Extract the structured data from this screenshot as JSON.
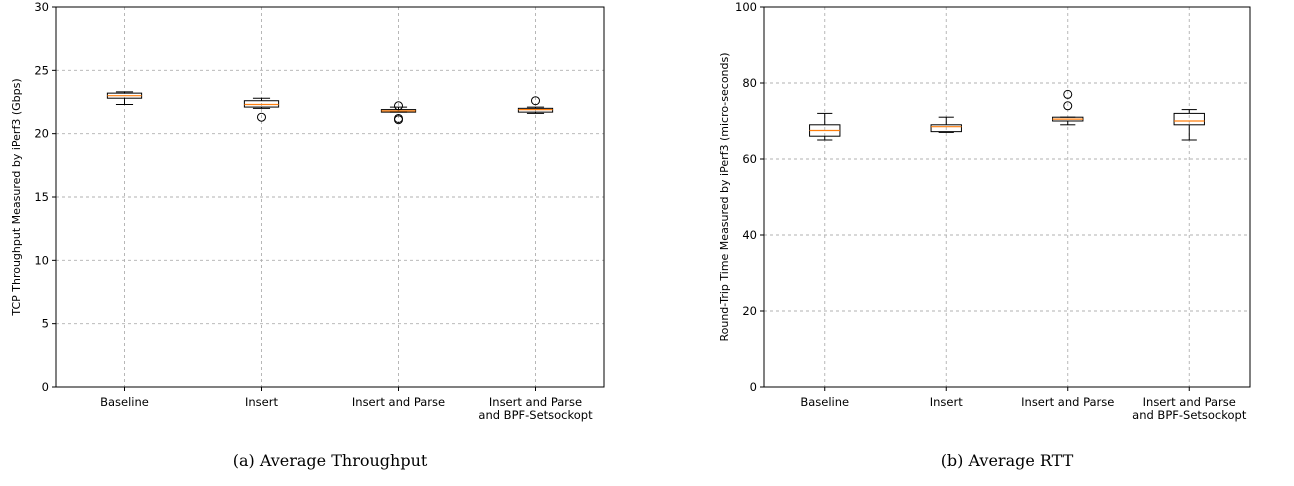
{
  "chart_data": [
    {
      "type": "box",
      "caption": "(a) Average Throughput",
      "xlabel": "",
      "ylabel": "TCP Throughput Measured by iPerf3 (Gbps)",
      "ylim": [
        0,
        30
      ],
      "yticks": [
        0,
        5,
        10,
        15,
        20,
        25,
        30
      ],
      "grid": true,
      "categories": [
        "Baseline",
        "Insert",
        "Insert and Parse",
        "Insert and Parse\nand BPF-Setsockopt"
      ],
      "boxes": [
        {
          "whislo": 22.3,
          "q1": 22.8,
          "med": 23.0,
          "q3": 23.2,
          "whishi": 23.3,
          "fliers": []
        },
        {
          "whislo": 22.0,
          "q1": 22.1,
          "med": 22.3,
          "q3": 22.6,
          "whishi": 22.8,
          "fliers": [
            21.3
          ]
        },
        {
          "whislo": 21.7,
          "q1": 21.7,
          "med": 21.8,
          "q3": 21.9,
          "whishi": 22.1,
          "fliers": [
            22.2,
            21.2,
            21.1
          ]
        },
        {
          "whislo": 21.6,
          "q1": 21.7,
          "med": 21.9,
          "q3": 22.0,
          "whishi": 22.1,
          "fliers": [
            22.6
          ]
        }
      ]
    },
    {
      "type": "box",
      "caption": "(b) Average RTT",
      "xlabel": "",
      "ylabel": "Round-Trip Time Measured by iPerf3 (micro-seconds)",
      "ylim": [
        0,
        100
      ],
      "yticks": [
        0,
        20,
        40,
        60,
        80,
        100
      ],
      "grid": true,
      "categories": [
        "Baseline",
        "Insert",
        "Insert and Parse",
        "Insert and Parse\nand BPF-Setsockopt"
      ],
      "boxes": [
        {
          "whislo": 65,
          "q1": 66,
          "med": 67.5,
          "q3": 69,
          "whishi": 72,
          "fliers": []
        },
        {
          "whislo": 67,
          "q1": 67.2,
          "med": 68.5,
          "q3": 69,
          "whishi": 71,
          "fliers": []
        },
        {
          "whislo": 69,
          "q1": 70,
          "med": 70.5,
          "q3": 71,
          "whishi": 71,
          "fliers": [
            77,
            74
          ]
        },
        {
          "whislo": 65,
          "q1": 69,
          "med": 70,
          "q3": 72,
          "whishi": 73,
          "fliers": []
        }
      ]
    }
  ]
}
